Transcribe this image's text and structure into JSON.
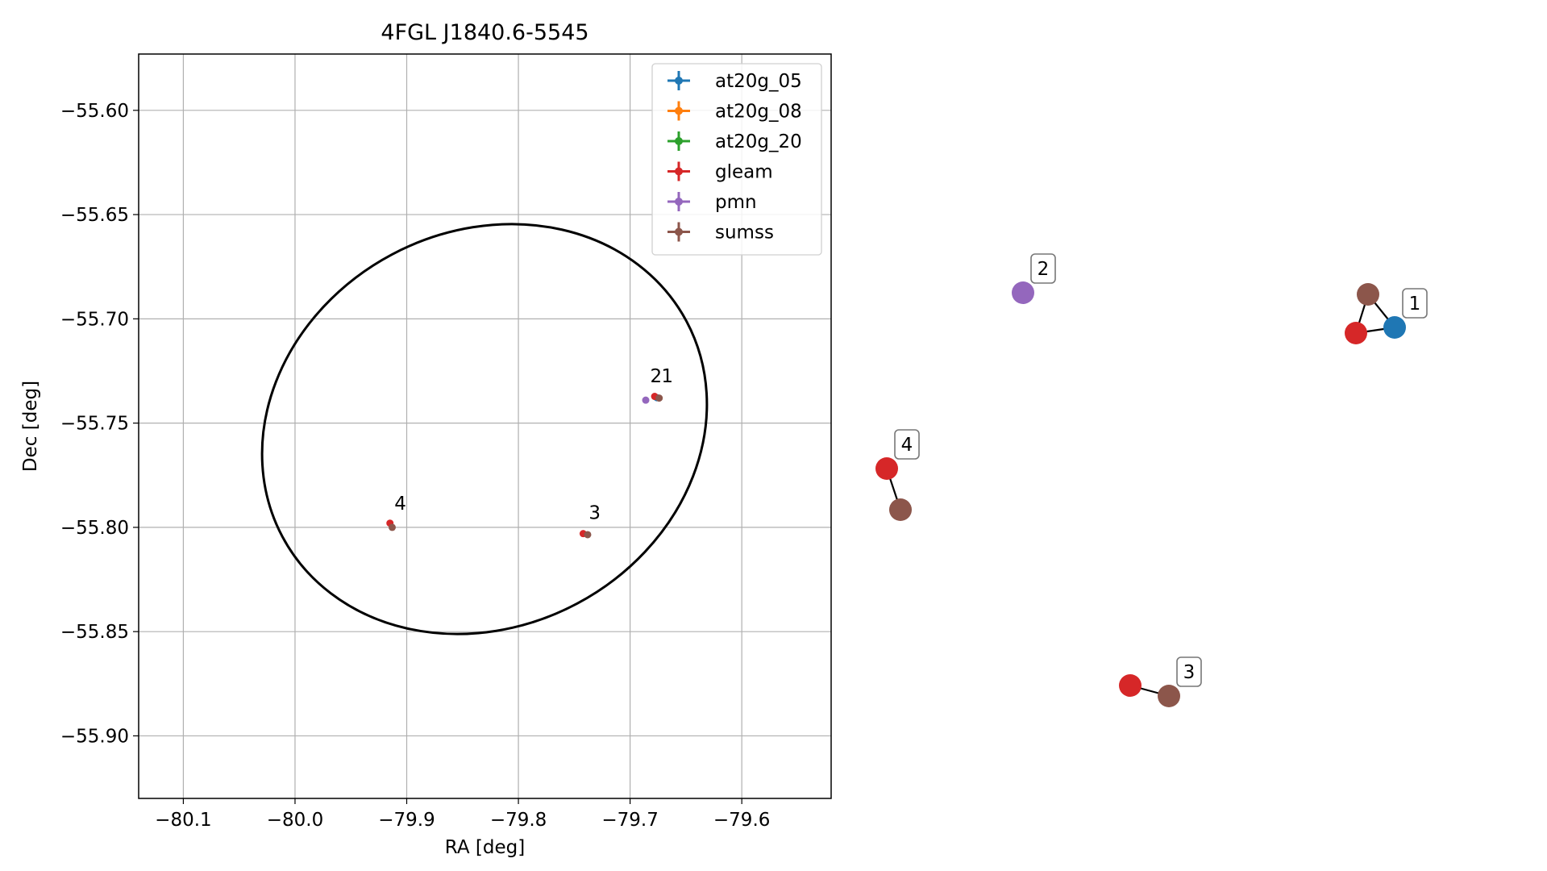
{
  "chart_data": [
    {
      "type": "scatter",
      "title": "4FGL J1840.6-5545",
      "xlabel": "RA [deg]",
      "ylabel": "Dec [deg]",
      "xlim": [
        -80.14,
        -79.52
      ],
      "ylim": [
        -55.93,
        -55.573
      ],
      "xticks": [
        -80.1,
        -80.0,
        -79.9,
        -79.8,
        -79.7,
        -79.6
      ],
      "xtick_labels": [
        "−80.1",
        "−80.0",
        "−79.9",
        "−79.8",
        "−79.7",
        "−79.6"
      ],
      "yticks": [
        -55.6,
        -55.65,
        -55.7,
        -55.75,
        -55.8,
        -55.85,
        -55.9
      ],
      "ytick_labels": [
        "−55.60",
        "−55.65",
        "−55.70",
        "−55.75",
        "−55.80",
        "−55.85",
        "−55.90"
      ],
      "grid": true,
      "legend_position": "top-right",
      "series": [
        {
          "name": "at20g_05",
          "color": "#1f77b4",
          "points": [
            {
              "x": -79.676,
              "y": -55.7378
            }
          ]
        },
        {
          "name": "at20g_08",
          "color": "#ff7f0e",
          "points": []
        },
        {
          "name": "at20g_20",
          "color": "#2ca02c",
          "points": []
        },
        {
          "name": "gleam",
          "color": "#d62728",
          "points": [
            {
              "x": -79.678,
              "y": -55.7372
            },
            {
              "x": -79.742,
              "y": -55.803
            },
            {
              "x": -79.915,
              "y": -55.798
            }
          ]
        },
        {
          "name": "pmn",
          "color": "#9467bd",
          "points": [
            {
              "x": -79.686,
              "y": -55.739
            }
          ]
        },
        {
          "name": "sumss",
          "color": "#8c564b",
          "points": [
            {
              "x": -79.674,
              "y": -55.738
            },
            {
              "x": -79.738,
              "y": -55.8035
            },
            {
              "x": -79.913,
              "y": -55.8
            }
          ]
        }
      ],
      "annotations": [
        {
          "text": "2",
          "x": -79.682,
          "y": -55.7305
        },
        {
          "text": "1",
          "x": -79.672,
          "y": -55.7305
        },
        {
          "text": "4",
          "x": -79.911,
          "y": -55.7915
        },
        {
          "text": "3",
          "x": -79.737,
          "y": -55.796
        }
      ],
      "ellipse": {
        "color": "#000000"
      }
    },
    {
      "type": "graph",
      "nodes": [
        {
          "id": "1",
          "label": "1",
          "color": "#1f77b4"
        },
        {
          "id": "1b",
          "color": "#8c564b"
        },
        {
          "id": "1c",
          "color": "#d62728"
        },
        {
          "id": "2",
          "label": "2",
          "color": "#9467bd"
        },
        {
          "id": "4",
          "label": "4",
          "color": "#d62728"
        },
        {
          "id": "4b",
          "color": "#8c564b"
        },
        {
          "id": "3",
          "label": "3",
          "color": "#8c564b"
        },
        {
          "id": "3b",
          "color": "#d62728"
        }
      ],
      "edges": [
        [
          "1",
          "1b"
        ],
        [
          "1",
          "1c"
        ],
        [
          "1b",
          "1c"
        ],
        [
          "4",
          "4b"
        ],
        [
          "3",
          "3b"
        ]
      ]
    }
  ]
}
